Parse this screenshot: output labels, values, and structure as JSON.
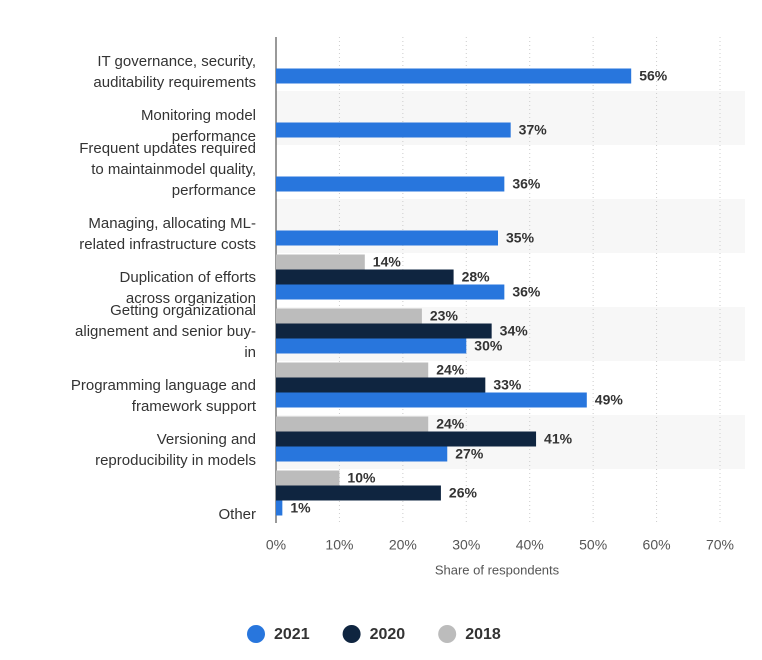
{
  "chart_data": {
    "type": "hbar",
    "categories": [
      "IT governance, security,\nauditability requirements",
      "Monitoring model\nperformance",
      "Frequent updates required\nto maintainmodel quality,\nperformance",
      "Managing, allocating ML-\nrelated infrastructure costs",
      "Duplication of efforts\nacross organization",
      "Getting organizational\nalignement and senior buy-\nin",
      "Programming language and\nframework support",
      "Versioning and\nreproducibility in models",
      "Other"
    ],
    "series": [
      {
        "name": "2021",
        "color": "#2876dd",
        "values": [
          56,
          37,
          36,
          35,
          36,
          30,
          49,
          27,
          1
        ],
        "value_labels": [
          "56%",
          "37%",
          "36%",
          "35%",
          "36%",
          "30%",
          "49%",
          "27%",
          "1%"
        ]
      },
      {
        "name": "2020",
        "color": "#0f2540",
        "values": [
          null,
          null,
          null,
          null,
          28,
          34,
          33,
          41,
          26
        ],
        "value_labels": [
          null,
          null,
          null,
          null,
          "28%",
          "34%",
          "33%",
          "41%",
          "26%"
        ]
      },
      {
        "name": "2018",
        "color": "#bcbcbc",
        "values": [
          null,
          null,
          null,
          null,
          14,
          23,
          24,
          24,
          10
        ],
        "value_labels": [
          null,
          null,
          null,
          null,
          "14%",
          "23%",
          "24%",
          "24%",
          "10%"
        ]
      }
    ],
    "x_label": "Share of respondents",
    "xlim": [
      0,
      70
    ],
    "xticks": [
      {
        "value": 0,
        "label": "0%"
      },
      {
        "value": 10,
        "label": "10%"
      },
      {
        "value": 20,
        "label": "20%"
      },
      {
        "value": 30,
        "label": "30%"
      },
      {
        "value": 40,
        "label": "40%"
      },
      {
        "value": 50,
        "label": "50%"
      },
      {
        "value": 60,
        "label": "60%"
      },
      {
        "value": 70,
        "label": "70%"
      }
    ],
    "grid": true
  }
}
